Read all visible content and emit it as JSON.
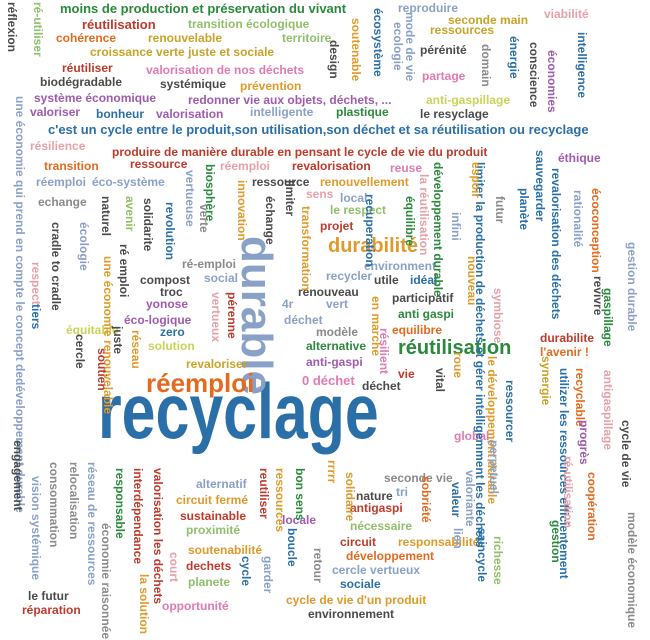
{
  "words": [
    {
      "text": "recyclage",
      "color": "#2a6fa8",
      "vertical": false
    },
    {
      "text": "durable",
      "color": "#8aa1c7",
      "vertical": true
    },
    {
      "text": "réemploi",
      "color": "#e46a1f",
      "vertical": false
    },
    {
      "text": "réutilisation",
      "color": "#2a8a3c",
      "vertical": false
    },
    {
      "text": "durabilité",
      "color": "#e09a2b",
      "vertical": false
    },
    {
      "text": "c'est un cycle entre le produit,son utilisation,son déchet et sa réutilisation ou recyclage",
      "color": "#2a6fa8",
      "vertical": false
    },
    {
      "text": "produire de manière durable en pensant le cycle de vie du produit",
      "color": "#c03a2b",
      "vertical": false
    },
    {
      "text": "moins de production et préservation du vivant",
      "color": "#2a8a3c",
      "vertical": false
    },
    {
      "text": "réutilisation",
      "color": "#c03a2b",
      "vertical": false
    },
    {
      "text": "transition écologique",
      "color": "#8fbf6a",
      "vertical": false
    },
    {
      "text": "reproduire",
      "color": "#8aa1c7",
      "vertical": false
    },
    {
      "text": "seconde main",
      "color": "#c9a227",
      "vertical": false
    },
    {
      "text": "viabilité",
      "color": "#e8a0a8",
      "vertical": false
    },
    {
      "text": "cohérence",
      "color": "#e46a1f",
      "vertical": false
    },
    {
      "text": "renouvelable",
      "color": "#c9a227",
      "vertical": false
    },
    {
      "text": "territoire",
      "color": "#8fbf6a",
      "vertical": false
    },
    {
      "text": "ressources",
      "color": "#c9a227",
      "vertical": false
    },
    {
      "text": "croissance verte juste et sociale",
      "color": "#c9a227",
      "vertical": false
    },
    {
      "text": "réutiliser",
      "color": "#c03a2b",
      "vertical": false
    },
    {
      "text": "valorisation de nos déchets",
      "color": "#e07ab0",
      "vertical": false
    },
    {
      "text": "pérénité",
      "color": "#4a4a4a",
      "vertical": false
    },
    {
      "text": "partage",
      "color": "#e07ab0",
      "vertical": false
    },
    {
      "text": "biodégradable",
      "color": "#4a4a4a",
      "vertical": false
    },
    {
      "text": "systémique",
      "color": "#4a4a4a",
      "vertical": false
    },
    {
      "text": "prévention",
      "color": "#e09a2b",
      "vertical": false
    },
    {
      "text": "système économique",
      "color": "#a05ab0",
      "vertical": false
    },
    {
      "text": "redonner vie aux objets, déchets, ...",
      "color": "#a05ab0",
      "vertical": false
    },
    {
      "text": "anti-gaspillage",
      "color": "#c9d35a",
      "vertical": false
    },
    {
      "text": "valoriser",
      "color": "#a05ab0",
      "vertical": false
    },
    {
      "text": "bonheur",
      "color": "#2a6fa8",
      "vertical": false
    },
    {
      "text": "valorisation",
      "color": "#a05ab0",
      "vertical": false
    },
    {
      "text": "intelligente",
      "color": "#8aa1c7",
      "vertical": false
    },
    {
      "text": "plastique",
      "color": "#2a8a3c",
      "vertical": false
    },
    {
      "text": "le resyclage",
      "color": "#4a4a4a",
      "vertical": false
    },
    {
      "text": "résilience",
      "color": "#e8a0a8",
      "vertical": false
    },
    {
      "text": "transition",
      "color": "#e46a1f",
      "vertical": false
    },
    {
      "text": "ressource",
      "color": "#c03a2b",
      "vertical": false
    },
    {
      "text": "revalorisation",
      "color": "#c03a2b",
      "vertical": false
    },
    {
      "text": "reuse",
      "color": "#e07ab0",
      "vertical": false
    },
    {
      "text": "éthique",
      "color": "#a05ab0",
      "vertical": false
    },
    {
      "text": "réemploi",
      "color": "#8aa1c7",
      "vertical": false
    },
    {
      "text": "éco-système",
      "color": "#8aa1c7",
      "vertical": false
    },
    {
      "text": "réemploi",
      "color": "#e8a0a8",
      "vertical": false
    },
    {
      "text": "ressource",
      "color": "#4a4a4a",
      "vertical": false
    },
    {
      "text": "renouvellement",
      "color": "#e09a2b",
      "vertical": false
    },
    {
      "text": "sens",
      "color": "#e8a0a8",
      "vertical": false
    },
    {
      "text": "local",
      "color": "#8aa1c7",
      "vertical": false
    },
    {
      "text": "echange",
      "color": "#8a8a8a",
      "vertical": false
    },
    {
      "text": "le respect",
      "color": "#8fbf6a",
      "vertical": false
    },
    {
      "text": "projet",
      "color": "#c03a2b",
      "vertical": false
    },
    {
      "text": "environment",
      "color": "#8aa1c7",
      "vertical": false
    },
    {
      "text": "utile",
      "color": "#4a4a4a",
      "vertical": false
    },
    {
      "text": "idéal",
      "color": "#2a6fa8",
      "vertical": false
    },
    {
      "text": "recycler",
      "color": "#8aa1c7",
      "vertical": false
    },
    {
      "text": "compost",
      "color": "#4a4a4a",
      "vertical": false
    },
    {
      "text": "troc",
      "color": "#4a4a4a",
      "vertical": false
    },
    {
      "text": "ré-emploi",
      "color": "#8a8a8a",
      "vertical": false
    },
    {
      "text": "social",
      "color": "#8aa1c7",
      "vertical": false
    },
    {
      "text": "renouveau",
      "color": "#4a4a4a",
      "vertical": false
    },
    {
      "text": "participatif",
      "color": "#4a4a4a",
      "vertical": false
    },
    {
      "text": "yonose",
      "color": "#a05ab0",
      "vertical": false
    },
    {
      "text": "4r",
      "color": "#8aa1c7",
      "vertical": false
    },
    {
      "text": "vert",
      "color": "#8aa1c7",
      "vertical": false
    },
    {
      "text": "anti gaspi",
      "color": "#2a8a3c",
      "vertical": false
    },
    {
      "text": "éco-logique",
      "color": "#a05ab0",
      "vertical": false
    },
    {
      "text": "déchet",
      "color": "#8aa1c7",
      "vertical": false
    },
    {
      "text": "équitable",
      "color": "#c9d35a",
      "vertical": false
    },
    {
      "text": "zero",
      "color": "#2a6fa8",
      "vertical": false
    },
    {
      "text": "modèle",
      "color": "#8a8a8a",
      "vertical": false
    },
    {
      "text": "equilibre",
      "color": "#e46a1f",
      "vertical": false
    },
    {
      "text": "solution",
      "color": "#c9d35a",
      "vertical": false
    },
    {
      "text": "alternative",
      "color": "#2a8a3c",
      "vertical": false
    },
    {
      "text": "l'avenir !",
      "color": "#e46a1f",
      "vertical": false
    },
    {
      "text": "durabilite",
      "color": "#c03a2b",
      "vertical": false
    },
    {
      "text": "revaloriser",
      "color": "#c9a227",
      "vertical": false
    },
    {
      "text": "anti-gaspi",
      "color": "#a05ab0",
      "vertical": false
    },
    {
      "text": "0 déchet",
      "color": "#e07ab0",
      "vertical": false
    },
    {
      "text": "déchet",
      "color": "#4a4a4a",
      "vertical": false
    },
    {
      "text": "vie",
      "color": "#c03a2b",
      "vertical": false
    },
    {
      "text": "alternatif",
      "color": "#8aa1c7",
      "vertical": false
    },
    {
      "text": "seconde vie",
      "color": "#8a8a8a",
      "vertical": false
    },
    {
      "text": "global",
      "color": "#e07ab0",
      "vertical": false
    },
    {
      "text": "nature",
      "color": "#4a4a4a",
      "vertical": false
    },
    {
      "text": "tri",
      "color": "#8aa1c7",
      "vertical": false
    },
    {
      "text": "circuit fermé",
      "color": "#e09a2b",
      "vertical": false
    },
    {
      "text": "sustainable",
      "color": "#c03a2b",
      "vertical": false
    },
    {
      "text": "antigaspi",
      "color": "#c03a2b",
      "vertical": false
    },
    {
      "text": "proximité",
      "color": "#8fbf6a",
      "vertical": false
    },
    {
      "text": "locale",
      "color": "#a05ab0",
      "vertical": false
    },
    {
      "text": "nécessaire",
      "color": "#8fbf6a",
      "vertical": false
    },
    {
      "text": "responsabilité",
      "color": "#e09a2b",
      "vertical": false
    },
    {
      "text": "circuit",
      "color": "#c03a2b",
      "vertical": false
    },
    {
      "text": "développement",
      "color": "#e46a1f",
      "vertical": false
    },
    {
      "text": "soutenabilité",
      "color": "#e09a2b",
      "vertical": false
    },
    {
      "text": "dechets",
      "color": "#c03a2b",
      "vertical": false
    },
    {
      "text": "planete",
      "color": "#8fbf6a",
      "vertical": false
    },
    {
      "text": "cercle vertueux",
      "color": "#8aa1c7",
      "vertical": false
    },
    {
      "text": "sociale",
      "color": "#2a6fa8",
      "vertical": false
    },
    {
      "text": "cycle de vie d'un produit",
      "color": "#e09a2b",
      "vertical": false
    },
    {
      "text": "environnement",
      "color": "#4a4a4a",
      "vertical": false
    },
    {
      "text": "opportunité",
      "color": "#e07ab0",
      "vertical": false
    },
    {
      "text": "le futur",
      "color": "#4a4a4a",
      "vertical": false
    },
    {
      "text": "réparation",
      "color": "#c03a2b",
      "vertical": false
    },
    {
      "text": "réflexion",
      "color": "#4a4a4a",
      "vertical": true
    },
    {
      "text": "ré-utiliser",
      "color": "#8fbf6a",
      "vertical": true
    },
    {
      "text": "une économie qui prend en compte le concept dedéveloppement durable",
      "color": "#8aa1c7",
      "vertical": true
    },
    {
      "text": "écosystème",
      "color": "#2a6fa8",
      "vertical": true
    },
    {
      "text": "mode de vie",
      "color": "#8aa1c7",
      "vertical": true
    },
    {
      "text": "ecologie",
      "color": "#8aa1c7",
      "vertical": true
    },
    {
      "text": "soutenable",
      "color": "#e09a2b",
      "vertical": true
    },
    {
      "text": "design",
      "color": "#4a4a4a",
      "vertical": true
    },
    {
      "text": "domain",
      "color": "#8a8a8a",
      "vertical": true
    },
    {
      "text": "énergie",
      "color": "#2a6fa8",
      "vertical": true
    },
    {
      "text": "conscience",
      "color": "#4a4a4a",
      "vertical": true
    },
    {
      "text": "économies",
      "color": "#a05ab0",
      "vertical": true
    },
    {
      "text": "intelligence",
      "color": "#2a6fa8",
      "vertical": true
    },
    {
      "text": "sauvegarder",
      "color": "#2a6fa8",
      "vertical": true
    },
    {
      "text": "revalorisation des déchets",
      "color": "#2a6fa8",
      "vertical": true
    },
    {
      "text": "écoconception",
      "color": "#e46a1f",
      "vertical": true
    },
    {
      "text": "rationalité",
      "color": "#8aa1c7",
      "vertical": true
    },
    {
      "text": "gestion durable",
      "color": "#8aa1c7",
      "vertical": true
    },
    {
      "text": "gaspillage",
      "color": "#2a8a3c",
      "vertical": true
    },
    {
      "text": "planète",
      "color": "#2a6fa8",
      "vertical": true
    },
    {
      "text": "limiter la production de déchets et gérer intelligemment les déchets",
      "color": "#2a6fa8",
      "vertical": true
    },
    {
      "text": "développement durable",
      "color": "#2a8a3c",
      "vertical": true
    },
    {
      "text": "la réutilisation",
      "color": "#e8a0a8",
      "vertical": true
    },
    {
      "text": "équilibre",
      "color": "#2a8a3c",
      "vertical": true
    },
    {
      "text": "espoir",
      "color": "#e09a2b",
      "vertical": true
    },
    {
      "text": "futur",
      "color": "#8a8a8a",
      "vertical": true
    },
    {
      "text": "nouveau",
      "color": "#e09a2b",
      "vertical": true
    },
    {
      "text": "infini",
      "color": "#8aa1c7",
      "vertical": true
    },
    {
      "text": "symbiose",
      "color": "#e8a0a8",
      "vertical": true
    },
    {
      "text": "revivre",
      "color": "#4a4a4a",
      "vertical": true
    },
    {
      "text": "vertueuse",
      "color": "#8aa1c7",
      "vertical": true
    },
    {
      "text": "biosphère",
      "color": "#2a8a3c",
      "vertical": true
    },
    {
      "text": "verte",
      "color": "#8a8a8a",
      "vertical": true
    },
    {
      "text": "échange",
      "color": "#4a4a4a",
      "vertical": true
    },
    {
      "text": "limiter",
      "color": "#4a4a4a",
      "vertical": true
    },
    {
      "text": "transformation",
      "color": "#e09a2b",
      "vertical": true
    },
    {
      "text": "innovation",
      "color": "#e09a2b",
      "vertical": true
    },
    {
      "text": "avenir",
      "color": "#8fbf6a",
      "vertical": true
    },
    {
      "text": "naturel",
      "color": "#4a4a4a",
      "vertical": true
    },
    {
      "text": "ré emploi",
      "color": "#4a4a4a",
      "vertical": true
    },
    {
      "text": "solidarite",
      "color": "#4a4a4a",
      "vertical": true
    },
    {
      "text": "revolution",
      "color": "#2a6fa8",
      "vertical": true
    },
    {
      "text": "recuperation",
      "color": "#2a6fa8",
      "vertical": true
    },
    {
      "text": "écologie",
      "color": "#8aa1c7",
      "vertical": true
    },
    {
      "text": "cradle to cradle",
      "color": "#4a4a4a",
      "vertical": true
    },
    {
      "text": "une économie renouvelable",
      "color": "#e09a2b",
      "vertical": true
    },
    {
      "text": "cercle",
      "color": "#4a4a4a",
      "vertical": true
    },
    {
      "text": "respect",
      "color": "#e8a0a8",
      "vertical": true
    },
    {
      "text": "tiers",
      "color": "#2a6fa8",
      "vertical": true
    },
    {
      "text": "soutien",
      "color": "#c03a2b",
      "vertical": true
    },
    {
      "text": "juste",
      "color": "#4a4a4a",
      "vertical": true
    },
    {
      "text": "réseau",
      "color": "#e09a2b",
      "vertical": true
    },
    {
      "text": "vertueux",
      "color": "#e8a0a8",
      "vertical": true
    },
    {
      "text": "pérenne",
      "color": "#c03a2b",
      "vertical": true
    },
    {
      "text": "en marche",
      "color": "#e09a2b",
      "vertical": true
    },
    {
      "text": "résilient",
      "color": "#e07ab0",
      "vertical": true
    },
    {
      "text": "vital",
      "color": "#4a4a4a",
      "vertical": true
    },
    {
      "text": "roue",
      "color": "#e09a2b",
      "vertical": true
    },
    {
      "text": "ressourcer",
      "color": "#2a6fa8",
      "vertical": true
    },
    {
      "text": "le développement durable",
      "color": "#e09a2b",
      "vertical": true
    },
    {
      "text": "perpetuel",
      "color": "#8aa1c7",
      "vertical": true
    },
    {
      "text": "richesse",
      "color": "#8fbf6a",
      "vertical": true
    },
    {
      "text": "synergie",
      "color": "#c9a227",
      "vertical": true
    },
    {
      "text": "utilizer les ressources efficientement",
      "color": "#2a6fa8",
      "vertical": true
    },
    {
      "text": "recyclable",
      "color": "#e46a1f",
      "vertical": true
    },
    {
      "text": "antigaspillage",
      "color": "#e8a0a8",
      "vertical": true
    },
    {
      "text": "cycle de vie",
      "color": "#4a4a4a",
      "vertical": true
    },
    {
      "text": "progrès",
      "color": "#a05ab0",
      "vertical": true
    },
    {
      "text": "ré-utilisation",
      "color": "#e8a0a8",
      "vertical": true
    },
    {
      "text": "coopération",
      "color": "#e46a1f",
      "vertical": true
    },
    {
      "text": "modèle économique",
      "color": "#8a8a8a",
      "vertical": true
    },
    {
      "text": "gestion",
      "color": "#2a8a3c",
      "vertical": true
    },
    {
      "text": "engagement",
      "color": "#4a4a4a",
      "vertical": true
    },
    {
      "text": "réseau de ressources",
      "color": "#8aa1c7",
      "vertical": true
    },
    {
      "text": "relocalisation",
      "color": "#8a8a8a",
      "vertical": true
    },
    {
      "text": "consommation",
      "color": "#8a8a8a",
      "vertical": true
    },
    {
      "text": "vision systémique",
      "color": "#8aa1c7",
      "vertical": true
    },
    {
      "text": "responsable",
      "color": "#2a8a3c",
      "vertical": true
    },
    {
      "text": "interdépendance",
      "color": "#c03a2b",
      "vertical": true
    },
    {
      "text": "valorisation les déchets",
      "color": "#c03a2b",
      "vertical": true
    },
    {
      "text": "économie raisonnée",
      "color": "#8a8a8a",
      "vertical": true
    },
    {
      "text": "la solution",
      "color": "#e09a2b",
      "vertical": true
    },
    {
      "text": "court",
      "color": "#e8a0a8",
      "vertical": true
    },
    {
      "text": "cycle",
      "color": "#2a6fa8",
      "vertical": true
    },
    {
      "text": "garder",
      "color": "#8aa1c7",
      "vertical": true
    },
    {
      "text": "reutiliser",
      "color": "#c03a2b",
      "vertical": true
    },
    {
      "text": "ressources",
      "color": "#e09a2b",
      "vertical": true
    },
    {
      "text": "boucle",
      "color": "#2a6fa8",
      "vertical": true
    },
    {
      "text": "bon sens",
      "color": "#2a8a3c",
      "vertical": true
    },
    {
      "text": "retour",
      "color": "#8a8a8a",
      "vertical": true
    },
    {
      "text": "solidaire",
      "color": "#e09a2b",
      "vertical": true
    },
    {
      "text": "rrrrr",
      "color": "#e09a2b",
      "vertical": true
    },
    {
      "text": "sobriété",
      "color": "#e46a1f",
      "vertical": true
    },
    {
      "text": "valeur",
      "color": "#2a6fa8",
      "vertical": true
    },
    {
      "text": "lien",
      "color": "#8aa1c7",
      "vertical": true
    },
    {
      "text": "valoriante",
      "color": "#8aa1c7",
      "vertical": true
    },
    {
      "text": "saincycle",
      "color": "#2a6fa8",
      "vertical": true
    },
    {
      "text": "réutilisable",
      "color": "#e46a1f",
      "vertical": true
    }
  ]
}
